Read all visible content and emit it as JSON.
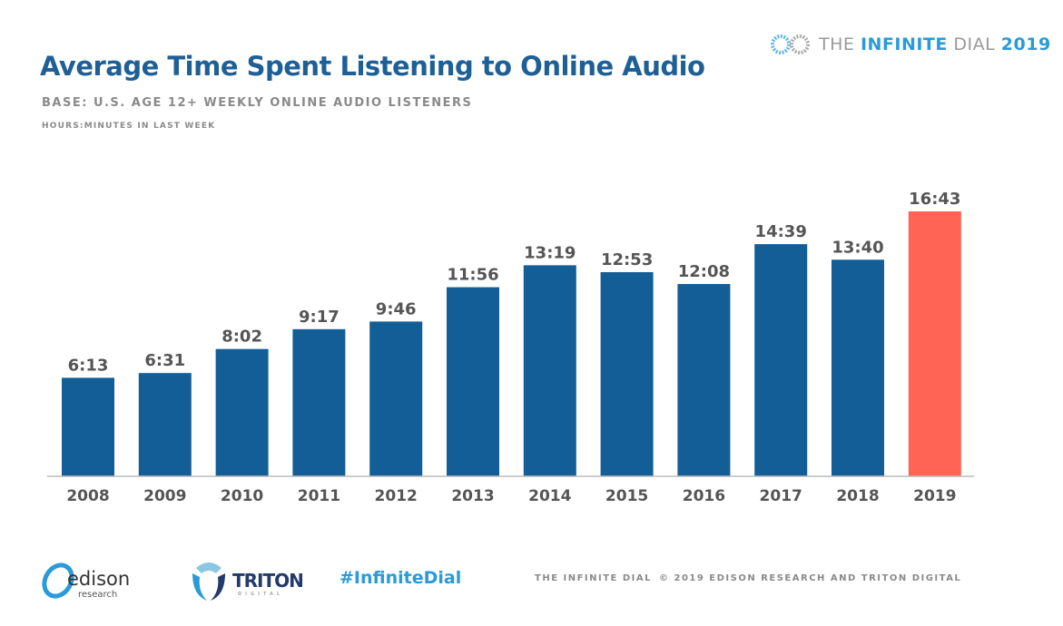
{
  "header": {
    "title": "Average Time Spent Listening to Online Audio",
    "subtitle": "BASE: U.S. AGE 12+ WEEKLY ONLINE AUDIO LISTENERS",
    "unit_note": "HOURS:MINUTES IN LAST WEEK"
  },
  "brand": {
    "prefix": "THE ",
    "highlight": "INFINITE",
    "suffix": " DIAL",
    "year": "2019"
  },
  "chart_data": {
    "type": "bar",
    "categories": [
      "2008",
      "2009",
      "2010",
      "2011",
      "2012",
      "2013",
      "2014",
      "2015",
      "2016",
      "2017",
      "2018",
      "2019"
    ],
    "labels": [
      "6:13",
      "6:31",
      "8:02",
      "9:17",
      "9:46",
      "11:56",
      "13:19",
      "12:53",
      "12:08",
      "14:39",
      "13:40",
      "16:43"
    ],
    "values_hours": [
      6.217,
      6.517,
      8.033,
      9.283,
      9.767,
      11.933,
      13.317,
      12.883,
      12.133,
      14.65,
      13.667,
      16.717
    ],
    "ylim": [
      0,
      17
    ],
    "grid": false,
    "colors": {
      "default": "#135e96",
      "highlight": "#ff6454"
    },
    "highlight_category": "2019"
  },
  "footer": {
    "edison": "edison",
    "edison_sub": "research",
    "triton": "TRITON",
    "triton_sub": "DIGITAL",
    "hashtag": "#InfiniteDial",
    "credit_left": "THE INFINITE DIAL",
    "credit_right": "© 2019 EDISON RESEARCH AND TRITON DIGITAL"
  }
}
